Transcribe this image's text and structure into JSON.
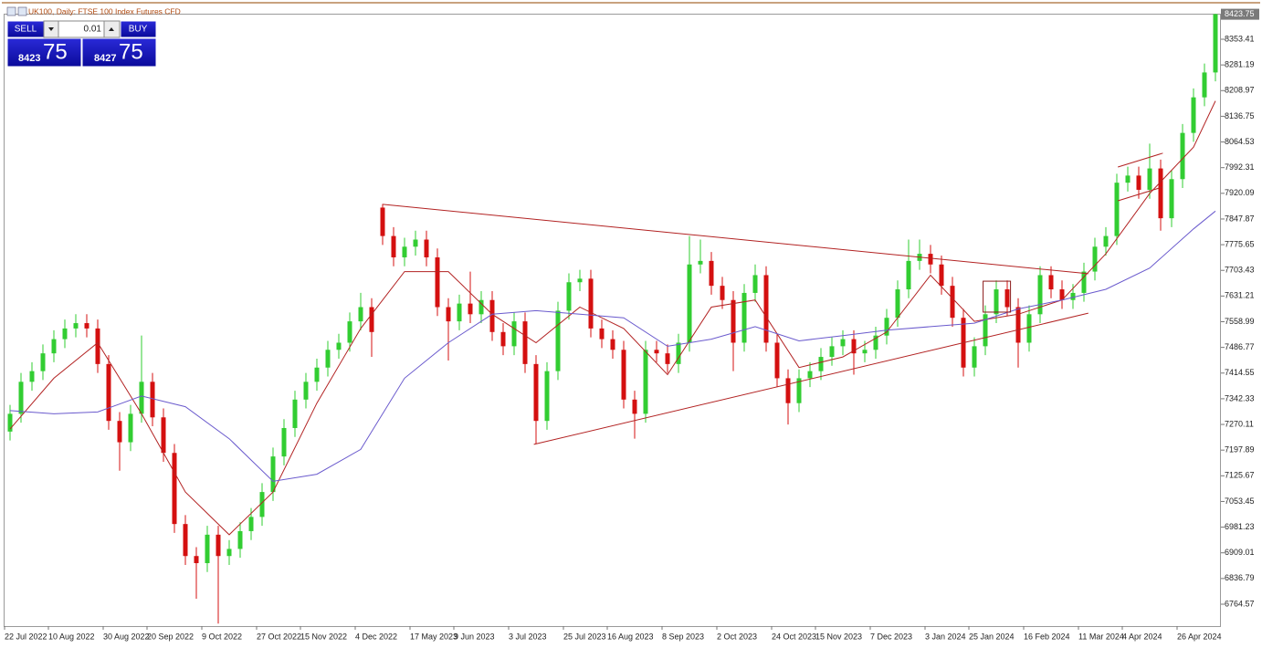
{
  "chart_data": {
    "type": "candlestick",
    "title": "UK100, Daily:  FTSE 100 Index Futures CFD",
    "categories": [
      "22 Jul 2022",
      null,
      null,
      null,
      "10 Aug 2022",
      null,
      null,
      null,
      null,
      "30 Aug 2022",
      null,
      null,
      null,
      "20 Sep 2022",
      null,
      null,
      null,
      null,
      "9 Oct 2022",
      null,
      null,
      null,
      null,
      "27 Oct 2022",
      null,
      null,
      null,
      "15 Nov 2022",
      null,
      null,
      null,
      null,
      "4 Dec 2022",
      null,
      null,
      null,
      null,
      "17 May 2023",
      null,
      null,
      null,
      "9 Jun 2023",
      null,
      null,
      null,
      null,
      "3 Jul 2023",
      null,
      null,
      null,
      null,
      "25 Jul 2023",
      null,
      null,
      null,
      "16 Aug 2023",
      null,
      null,
      null,
      null,
      "8 Sep 2023",
      null,
      null,
      null,
      null,
      "2 Oct 2023",
      null,
      null,
      null,
      null,
      "24 Oct 2023",
      null,
      null,
      null,
      "15 Nov 2023",
      null,
      null,
      null,
      null,
      "7 Dec 2023",
      null,
      null,
      null,
      null,
      "3 Jan 2024",
      null,
      null,
      null,
      "25 Jan 2024",
      null,
      null,
      null,
      null,
      "16 Feb 2024",
      null,
      null,
      null,
      null,
      "11 Mar 2024",
      null,
      null,
      null,
      "4 Apr 2024",
      null,
      null,
      null,
      null,
      "26 Apr 2024",
      null,
      null,
      null
    ],
    "open": [
      7250,
      7300,
      7390,
      7420,
      7470,
      7510,
      7540,
      7555,
      7540,
      7440,
      7280,
      7220,
      7300,
      7390,
      7290,
      7190,
      6990,
      6900,
      6880,
      6960,
      6900,
      6920,
      6970,
      7010,
      7080,
      7180,
      7260,
      7340,
      7390,
      7430,
      7480,
      7500,
      7560,
      7600,
      7880,
      7800,
      7740,
      7770,
      7790,
      7740,
      7600,
      7560,
      7610,
      7580,
      7620,
      7530,
      7490,
      7560,
      7440,
      7280,
      7420,
      7590,
      7670,
      7680,
      7540,
      7510,
      7480,
      7340,
      7300,
      7480,
      7470,
      7440,
      7500,
      7720,
      7730,
      7660,
      7620,
      7500,
      7640,
      7690,
      7500,
      7400,
      7330,
      7400,
      7420,
      7460,
      7490,
      7510,
      7470,
      7480,
      7520,
      7570,
      7650,
      7730,
      7750,
      7720,
      7660,
      7570,
      7430,
      7490,
      7580,
      7650,
      7600,
      7500,
      7580,
      7690,
      7650,
      7620,
      7640,
      7700,
      7770,
      7800,
      7950,
      7970,
      7930,
      7990,
      7850,
      7960,
      8090,
      8190,
      8260
    ],
    "high": [
      7325,
      7415,
      7445,
      7495,
      7535,
      7565,
      7580,
      7580,
      7565,
      7465,
      7305,
      7325,
      7520,
      7415,
      7315,
      7215,
      7015,
      6925,
      6985,
      6985,
      6945,
      6995,
      7035,
      7105,
      7205,
      7285,
      7365,
      7415,
      7455,
      7505,
      7525,
      7585,
      7640,
      7625,
      7890,
      7825,
      7795,
      7815,
      7815,
      7765,
      7625,
      7635,
      7700,
      7645,
      7645,
      7555,
      7585,
      7585,
      7465,
      7445,
      7615,
      7695,
      7705,
      7705,
      7565,
      7535,
      7505,
      7365,
      7505,
      7505,
      7495,
      7525,
      7800,
      7790,
      7755,
      7685,
      7645,
      7665,
      7720,
      7715,
      7525,
      7425,
      7425,
      7445,
      7485,
      7515,
      7535,
      7535,
      7505,
      7545,
      7595,
      7675,
      7790,
      7790,
      7775,
      7745,
      7685,
      7595,
      7515,
      7605,
      7675,
      7675,
      7625,
      7605,
      7715,
      7715,
      7675,
      7665,
      7725,
      7795,
      7825,
      7975,
      7995,
      7995,
      8060,
      8015,
      7985,
      8115,
      8215,
      8285,
      8425
    ],
    "low": [
      7225,
      7275,
      7365,
      7395,
      7445,
      7485,
      7515,
      7515,
      7415,
      7255,
      7140,
      7195,
      7275,
      7265,
      7165,
      6965,
      6875,
      6780,
      6855,
      6710,
      6875,
      6895,
      6945,
      6985,
      7055,
      7155,
      7235,
      7315,
      7365,
      7405,
      7455,
      7475,
      7535,
      7460,
      7775,
      7715,
      7715,
      7745,
      7715,
      7575,
      7450,
      7535,
      7555,
      7555,
      7505,
      7465,
      7465,
      7415,
      7215,
      7255,
      7395,
      7565,
      7645,
      7515,
      7485,
      7455,
      7315,
      7230,
      7275,
      7445,
      7415,
      7415,
      7475,
      7695,
      7635,
      7595,
      7420,
      7475,
      7615,
      7475,
      7375,
      7270,
      7305,
      7375,
      7395,
      7435,
      7465,
      7410,
      7445,
      7455,
      7495,
      7545,
      7625,
      7705,
      7695,
      7635,
      7545,
      7405,
      7405,
      7465,
      7555,
      7575,
      7430,
      7475,
      7555,
      7625,
      7595,
      7595,
      7615,
      7675,
      7745,
      7775,
      7925,
      7905,
      7905,
      7815,
      7825,
      7935,
      8065,
      8165,
      8235
    ],
    "close": [
      7300,
      7390,
      7420,
      7470,
      7510,
      7540,
      7555,
      7540,
      7440,
      7280,
      7220,
      7300,
      7390,
      7290,
      7190,
      6990,
      6900,
      6880,
      6960,
      6900,
      6920,
      6970,
      7010,
      7080,
      7180,
      7260,
      7340,
      7390,
      7430,
      7480,
      7500,
      7560,
      7600,
      7530,
      7800,
      7740,
      7770,
      7790,
      7740,
      7600,
      7560,
      7610,
      7580,
      7620,
      7530,
      7490,
      7560,
      7440,
      7280,
      7420,
      7590,
      7670,
      7680,
      7540,
      7510,
      7480,
      7340,
      7300,
      7480,
      7470,
      7440,
      7500,
      7720,
      7730,
      7660,
      7620,
      7500,
      7640,
      7690,
      7500,
      7400,
      7330,
      7400,
      7420,
      7460,
      7490,
      7510,
      7470,
      7480,
      7520,
      7570,
      7650,
      7730,
      7750,
      7720,
      7660,
      7570,
      7430,
      7490,
      7580,
      7650,
      7600,
      7500,
      7580,
      7690,
      7650,
      7620,
      7640,
      7700,
      7770,
      7800,
      7950,
      7970,
      7930,
      7990,
      7850,
      7960,
      8090,
      8190,
      8260,
      8424
    ],
    "up_color": "#32cd32",
    "down_color": "#d41010",
    "series": [
      {
        "color": "#b22222",
        "x": [
          0,
          4,
          8,
          12,
          16,
          20,
          24,
          28,
          32,
          36,
          40,
          44,
          48,
          52,
          56,
          60,
          64,
          68,
          72,
          76,
          80,
          84,
          88,
          92,
          96,
          100,
          104,
          108,
          110
        ],
        "values": [
          7257,
          7400,
          7500,
          7300,
          7080,
          6960,
          7080,
          7330,
          7540,
          7700,
          7700,
          7580,
          7500,
          7600,
          7540,
          7410,
          7600,
          7620,
          7430,
          7460,
          7530,
          7690,
          7560,
          7580,
          7620,
          7750,
          7920,
          8050,
          8180
        ]
      },
      {
        "color": "#6a5acd",
        "x": [
          0,
          4,
          8,
          12,
          16,
          20,
          24,
          28,
          32,
          36,
          40,
          44,
          48,
          52,
          56,
          60,
          64,
          68,
          72,
          76,
          80,
          84,
          88,
          92,
          96,
          100,
          104,
          108,
          110
        ],
        "values": [
          7309,
          7300,
          7305,
          7350,
          7320,
          7230,
          7110,
          7130,
          7200,
          7400,
          7500,
          7580,
          7590,
          7580,
          7570,
          7490,
          7510,
          7545,
          7505,
          7520,
          7535,
          7545,
          7555,
          7595,
          7620,
          7650,
          7710,
          7820,
          7870
        ]
      }
    ],
    "trendlines": [
      {
        "color": "#b22222",
        "x": [
          34,
          98.4
        ],
        "y": [
          7889,
          7694
        ]
      },
      {
        "color": "#b22222",
        "x": [
          47.8,
          98.4
        ],
        "y": [
          7214,
          7583
        ]
      },
      {
        "color": "#b22222",
        "x": [
          101.1,
          105.2
        ],
        "y": [
          7994,
          8033
        ]
      },
      {
        "color": "#b22222",
        "x": [
          101.1,
          105.2
        ],
        "y": [
          7899,
          7938
        ]
      }
    ],
    "rectangles": [
      {
        "color": "#8b1a1a",
        "x": [
          88.8,
          91.3
        ],
        "y": [
          7586,
          7673
        ]
      }
    ],
    "last_price": 8423.75,
    "ylim": [
      6705.5,
      8425.3
    ],
    "yticks": [
      6764.57,
      6836.79,
      6909.01,
      6981.23,
      7053.45,
      7125.67,
      7197.89,
      7270.11,
      7342.33,
      7414.55,
      7486.77,
      7558.99,
      7631.21,
      7703.43,
      7775.65,
      7847.87,
      7920.09,
      7992.31,
      8064.53,
      8136.75,
      8208.97,
      8281.19,
      8353.41
    ]
  },
  "trade_panel": {
    "sell": "SELL",
    "buy": "BUY",
    "lot": "0.01",
    "sell_big": "8423",
    "sell_pips": "75",
    "buy_big": "8427",
    "buy_pips": "75"
  }
}
